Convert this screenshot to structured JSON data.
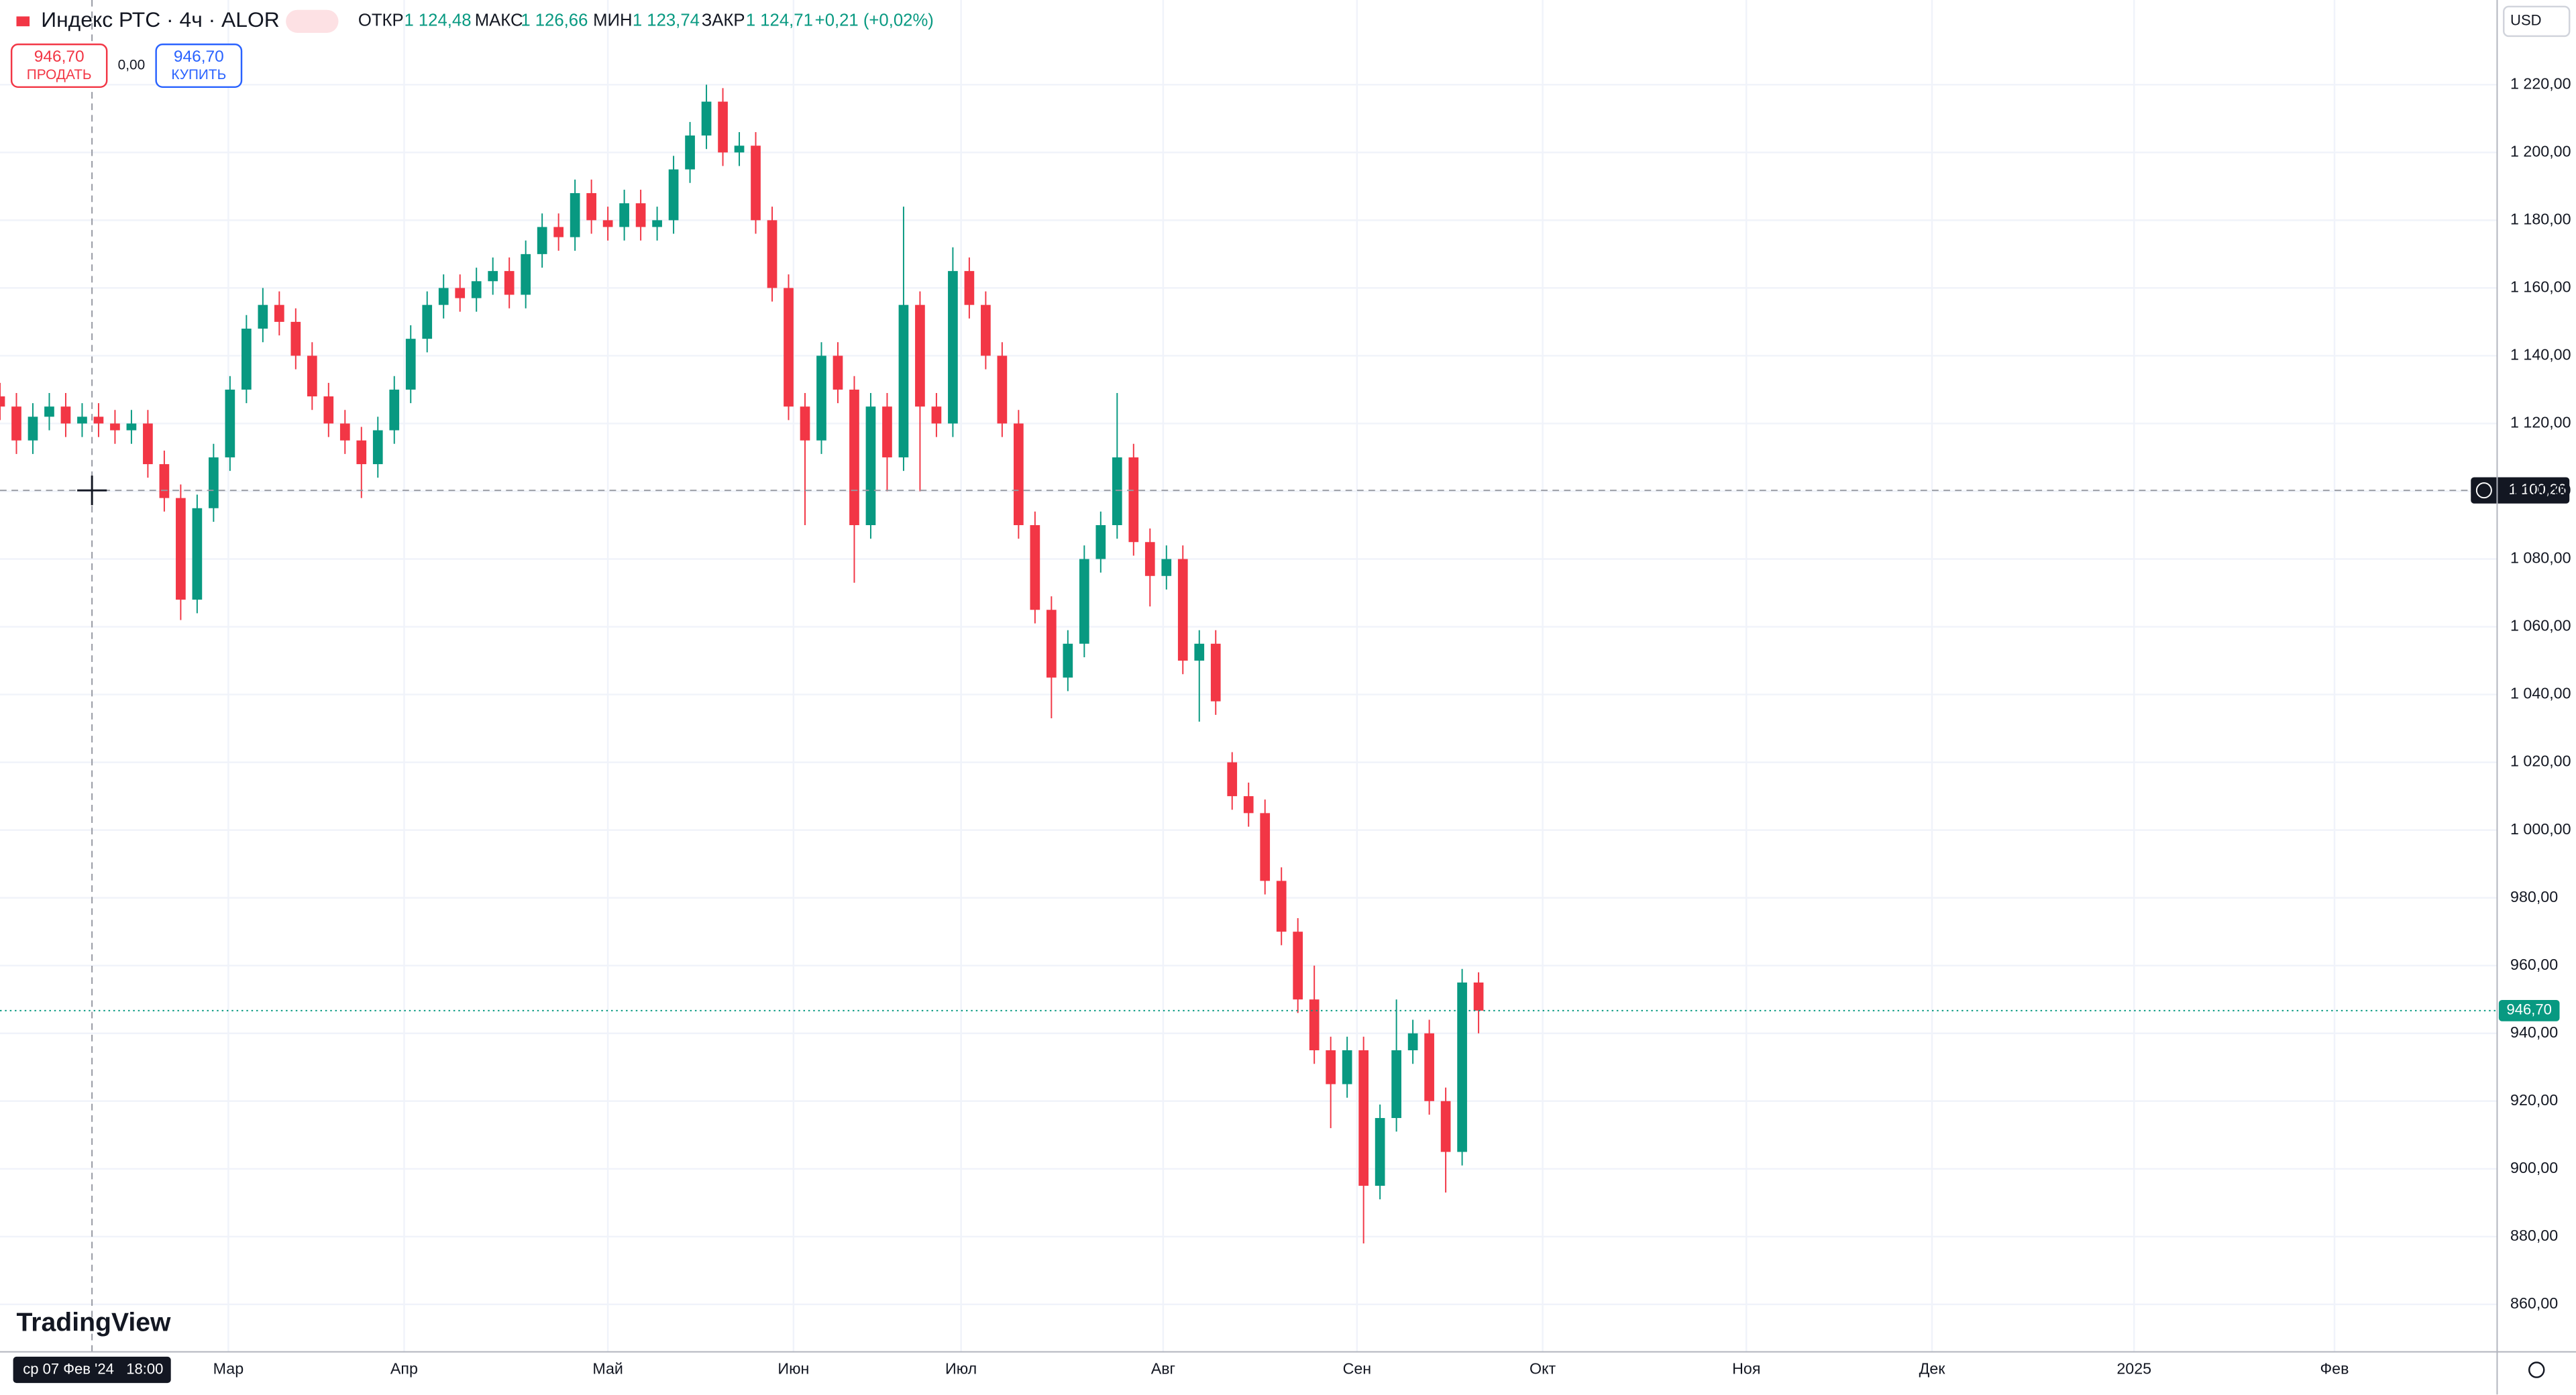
{
  "header": {
    "title": "Индекс РТС · 4ч · ALOR",
    "ohlc": [
      {
        "label": "ОТКР",
        "value": "1 124,48"
      },
      {
        "label": "МАКС",
        "value": "1 126,66"
      },
      {
        "label": "МИН",
        "value": "1 123,74"
      },
      {
        "label": "ЗАКР",
        "value": "1 124,71"
      }
    ],
    "change": "+0,21 (+0,02%)",
    "sell": {
      "price": "946,70",
      "label": "ПРОДАТЬ"
    },
    "spread": "0,00",
    "buy": {
      "price": "946,70",
      "label": "КУПИТЬ"
    },
    "currency": "USD",
    "logo": "TradingView"
  },
  "chart_data": {
    "type": "candlestick",
    "up_color": "#089981",
    "down_color": "#f23645",
    "x": [
      0,
      1,
      2,
      3,
      4,
      5,
      6,
      7,
      8,
      9,
      10,
      11,
      12,
      13,
      14,
      15,
      16,
      17,
      18,
      19,
      20,
      21,
      22,
      23,
      24,
      25,
      26,
      27,
      28,
      29,
      30,
      31,
      32,
      33,
      34,
      35,
      36,
      37,
      38,
      39,
      40,
      41,
      42,
      43,
      44,
      45,
      46,
      47,
      48,
      49,
      50,
      51,
      52,
      53,
      54,
      55,
      56,
      57,
      58,
      59,
      60,
      61,
      62,
      63,
      64,
      65,
      66,
      67,
      68,
      69,
      70,
      71,
      72,
      73,
      74,
      75,
      76,
      77,
      78,
      79,
      80,
      81,
      82,
      83,
      84,
      85,
      86,
      87,
      88,
      89,
      90
    ],
    "open": [
      1128,
      1125,
      1115,
      1122,
      1125,
      1120,
      1122,
      1120,
      1118,
      1120,
      1108,
      1098,
      1068,
      1095,
      1110,
      1130,
      1148,
      1155,
      1150,
      1140,
      1128,
      1120,
      1115,
      1108,
      1118,
      1130,
      1145,
      1155,
      1160,
      1157,
      1162,
      1165,
      1158,
      1170,
      1178,
      1175,
      1188,
      1180,
      1178,
      1185,
      1178,
      1180,
      1195,
      1205,
      1215,
      1200,
      1202,
      1180,
      1160,
      1125,
      1115,
      1140,
      1130,
      1090,
      1125,
      1110,
      1155,
      1125,
      1120,
      1165,
      1155,
      1140,
      1120,
      1090,
      1065,
      1045,
      1055,
      1080,
      1090,
      1110,
      1085,
      1075,
      1080,
      1050,
      1055,
      1020,
      1010,
      1005,
      985,
      970,
      950,
      935,
      925,
      935,
      895,
      915,
      935,
      940,
      920,
      905,
      955
    ],
    "high": [
      1132,
      1129,
      1126,
      1129,
      1129,
      1126,
      1126,
      1124,
      1124,
      1124,
      1112,
      1102,
      1099,
      1114,
      1134,
      1152,
      1160,
      1159,
      1154,
      1144,
      1132,
      1124,
      1119,
      1122,
      1134,
      1149,
      1159,
      1164,
      1164,
      1166,
      1169,
      1169,
      1174,
      1182,
      1182,
      1192,
      1192,
      1184,
      1189,
      1189,
      1184,
      1199,
      1209,
      1220,
      1219,
      1206,
      1206,
      1184,
      1164,
      1129,
      1144,
      1144,
      1134,
      1129,
      1129,
      1184,
      1159,
      1129,
      1172,
      1169,
      1159,
      1144,
      1124,
      1094,
      1069,
      1059,
      1084,
      1094,
      1129,
      1114,
      1089,
      1084,
      1084,
      1059,
      1059,
      1023,
      1014,
      1009,
      989,
      974,
      960,
      939,
      939,
      939,
      919,
      950,
      944,
      944,
      924,
      959,
      958
    ],
    "low": [
      1121,
      1111,
      1111,
      1118,
      1116,
      1116,
      1116,
      1114,
      1114,
      1104,
      1094,
      1062,
      1064,
      1091,
      1106,
      1126,
      1144,
      1146,
      1136,
      1124,
      1116,
      1111,
      1098,
      1104,
      1114,
      1126,
      1141,
      1151,
      1153,
      1153,
      1158,
      1154,
      1154,
      1166,
      1171,
      1171,
      1176,
      1174,
      1174,
      1174,
      1174,
      1176,
      1191,
      1201,
      1196,
      1196,
      1176,
      1156,
      1121,
      1090,
      1111,
      1126,
      1073,
      1086,
      1100,
      1106,
      1100,
      1116,
      1116,
      1151,
      1136,
      1116,
      1086,
      1061,
      1033,
      1041,
      1051,
      1076,
      1086,
      1081,
      1066,
      1071,
      1046,
      1032,
      1034,
      1006,
      1001,
      981,
      966,
      946,
      931,
      912,
      921,
      878,
      891,
      911,
      931,
      916,
      893,
      901,
      940
    ],
    "close": [
      1125,
      1115,
      1122,
      1125,
      1120,
      1122,
      1120,
      1118,
      1120,
      1108,
      1098,
      1068,
      1095,
      1110,
      1130,
      1148,
      1155,
      1150,
      1140,
      1128,
      1120,
      1115,
      1108,
      1118,
      1130,
      1145,
      1155,
      1160,
      1157,
      1162,
      1165,
      1158,
      1170,
      1178,
      1175,
      1188,
      1180,
      1178,
      1185,
      1178,
      1180,
      1195,
      1205,
      1215,
      1200,
      1202,
      1180,
      1160,
      1125,
      1115,
      1140,
      1130,
      1090,
      1125,
      1110,
      1155,
      1125,
      1120,
      1165,
      1155,
      1140,
      1120,
      1090,
      1065,
      1045,
      1055,
      1080,
      1090,
      1110,
      1085,
      1075,
      1080,
      1050,
      1055,
      1038,
      1010,
      1005,
      985,
      970,
      950,
      935,
      925,
      935,
      895,
      915,
      935,
      940,
      920,
      905,
      955,
      946.7
    ],
    "xlim": [
      0,
      152
    ],
    "xticks": [
      {
        "value": 13.9,
        "label": "Мар"
      },
      {
        "value": 24.6,
        "label": "Апр"
      },
      {
        "value": 37,
        "label": "Май"
      },
      {
        "value": 48.3,
        "label": "Июн"
      },
      {
        "value": 58.5,
        "label": "Июл"
      },
      {
        "value": 70.8,
        "label": "Авг"
      },
      {
        "value": 82.6,
        "label": "Сен"
      },
      {
        "value": 93.9,
        "label": "Окт"
      },
      {
        "value": 106.3,
        "label": "Ноя"
      },
      {
        "value": 117.6,
        "label": "Дек"
      },
      {
        "value": 129.9,
        "label": "2025"
      },
      {
        "value": 142.1,
        "label": "Фев"
      }
    ],
    "ylim": [
      846,
      1245
    ],
    "yticks": [
      {
        "value": 860,
        "label": "860,00"
      },
      {
        "value": 880,
        "label": "880,00"
      },
      {
        "value": 900,
        "label": "900,00"
      },
      {
        "value": 920,
        "label": "920,00"
      },
      {
        "value": 940,
        "label": "940,00"
      },
      {
        "value": 960,
        "label": "960,00"
      },
      {
        "value": 980,
        "label": "980,00"
      },
      {
        "value": 1000,
        "label": "1 000,00"
      },
      {
        "value": 1020,
        "label": "1 020,00"
      },
      {
        "value": 1040,
        "label": "1 040,00"
      },
      {
        "value": 1060,
        "label": "1 060,00"
      },
      {
        "value": 1080,
        "label": "1 080,00"
      },
      {
        "value": 1100,
        "label": "1 100,00"
      },
      {
        "value": 1120,
        "label": "1 120,00"
      },
      {
        "value": 1140,
        "label": "1 140,00"
      },
      {
        "value": 1160,
        "label": "1 160,00"
      },
      {
        "value": 1180,
        "label": "1 180,00"
      },
      {
        "value": 1200,
        "label": "1 200,00"
      },
      {
        "value": 1220,
        "label": "1 220,00"
      }
    ],
    "grid": true,
    "last_price": {
      "value": 946.7,
      "label": "946,70"
    },
    "crosshair": {
      "x": 5.6,
      "label": "ср 07 Фев '24   18:00",
      "price": {
        "value": 1100.26,
        "label": "1 100,26"
      }
    }
  }
}
